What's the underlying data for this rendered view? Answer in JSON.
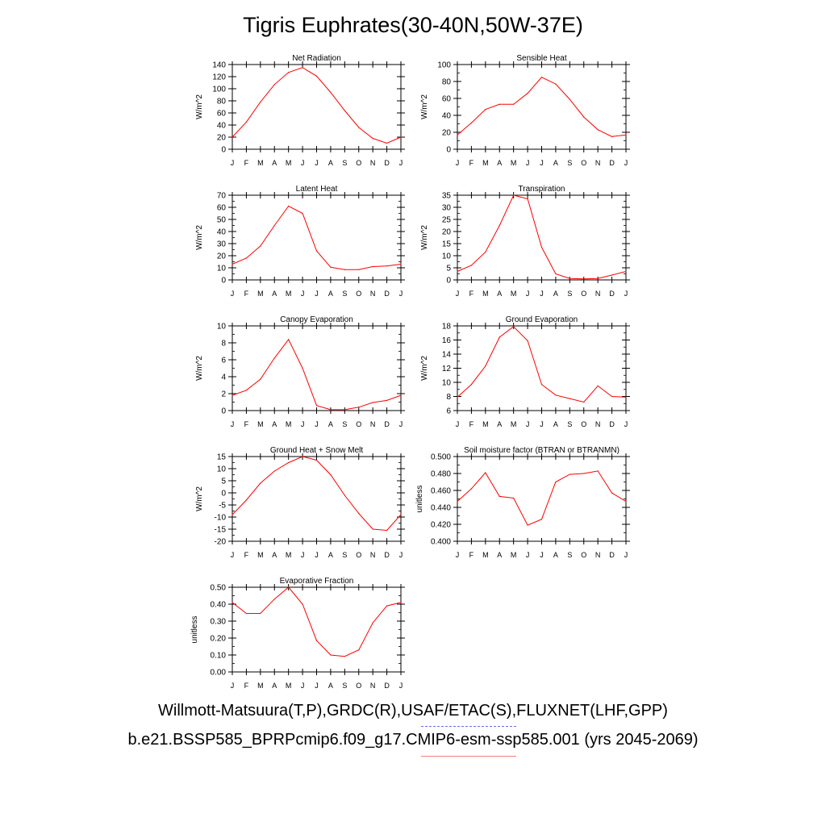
{
  "title": "Tigris Euphrates(30-40N,50W-37E)",
  "footer": {
    "observations": "Willmott-Matsuura(T,P),GRDC(R),USAF/ETAC(S),FLUXNET(LHF,GPP)",
    "run": "b.e21.BSSP585_BPRPcmip6.f09_g17.CMIP6-esm-ssp585.001 (yrs 2045-2069)"
  },
  "colors": {
    "line": "#ff0000",
    "obs_legend": "#6a6af0",
    "run_legend": "#f08080",
    "axis": "#000000"
  },
  "chart_data": [
    {
      "type": "line",
      "title": "Net Radiation",
      "ylabel": "W/m^2",
      "categories": [
        "J",
        "F",
        "M",
        "A",
        "M",
        "J",
        "J",
        "A",
        "S",
        "O",
        "N",
        "D",
        "J"
      ],
      "values": [
        20,
        45,
        78,
        107,
        127,
        135,
        121,
        94,
        64,
        36,
        18,
        10,
        20
      ],
      "ylim": [
        0,
        140
      ],
      "yticks": [
        "0",
        "20",
        "40",
        "60",
        "80",
        "100",
        "120",
        "140"
      ],
      "yminor": 20
    },
    {
      "type": "line",
      "title": "Sensible Heat",
      "ylabel": "W/m^2",
      "categories": [
        "J",
        "F",
        "M",
        "A",
        "M",
        "J",
        "J",
        "A",
        "S",
        "O",
        "N",
        "D",
        "J"
      ],
      "values": [
        17,
        31,
        47,
        53,
        53,
        66,
        85,
        77,
        59,
        38,
        23,
        15,
        17
      ],
      "ylim": [
        0,
        100
      ],
      "yticks": [
        "0",
        "20",
        "40",
        "60",
        "80",
        "100"
      ],
      "yminor": 10
    },
    {
      "type": "line",
      "title": "Latent Heat",
      "ylabel": "W/m^2",
      "categories": [
        "J",
        "F",
        "M",
        "A",
        "M",
        "J",
        "J",
        "A",
        "S",
        "O",
        "N",
        "D",
        "J"
      ],
      "values": [
        13,
        18,
        28,
        45,
        61,
        55,
        24,
        10.5,
        8.5,
        8.5,
        11,
        11.5,
        13
      ],
      "ylim": [
        0,
        70
      ],
      "yticks": [
        "0",
        "10",
        "20",
        "30",
        "40",
        "50",
        "60",
        "70"
      ],
      "yminor": 5
    },
    {
      "type": "line",
      "title": "Transpiration",
      "ylabel": "W/m^2",
      "categories": [
        "J",
        "F",
        "M",
        "A",
        "M",
        "J",
        "J",
        "A",
        "S",
        "O",
        "N",
        "D",
        "J"
      ],
      "values": [
        3.5,
        6,
        11.5,
        22.5,
        35,
        33.5,
        13.5,
        2.5,
        0.6,
        0.4,
        0.6,
        2,
        3.5
      ],
      "ylim": [
        0,
        35
      ],
      "yticks": [
        "0",
        "5",
        "10",
        "15",
        "20",
        "25",
        "30",
        "35"
      ],
      "yminor": 2.5
    },
    {
      "type": "line",
      "title": "Canopy Evaporation",
      "ylabel": "W/m^2",
      "categories": [
        "J",
        "F",
        "M",
        "A",
        "M",
        "J",
        "J",
        "A",
        "S",
        "O",
        "N",
        "D",
        "J"
      ],
      "values": [
        1.8,
        2.4,
        3.7,
        6.2,
        8.4,
        5.0,
        0.6,
        0.1,
        0.1,
        0.4,
        0.95,
        1.2,
        1.8
      ],
      "ylim": [
        0,
        10
      ],
      "yticks": [
        "0",
        "2",
        "4",
        "6",
        "8",
        "10"
      ],
      "yminor": 1
    },
    {
      "type": "line",
      "title": "Ground Evaporation",
      "ylabel": "W/m^2",
      "categories": [
        "J",
        "F",
        "M",
        "A",
        "M",
        "J",
        "J",
        "A",
        "S",
        "O",
        "N",
        "D",
        "J"
      ],
      "values": [
        7.9,
        9.7,
        12.3,
        16.4,
        17.9,
        15.9,
        9.7,
        8.2,
        7.7,
        7.2,
        9.5,
        8.0,
        7.9
      ],
      "ylim": [
        6,
        18
      ],
      "yticks": [
        "6",
        "8",
        "10",
        "12",
        "14",
        "16",
        "18"
      ],
      "yminor": 1
    },
    {
      "type": "line",
      "title": "Ground Heat + Snow Melt",
      "ylabel": "W/m^2",
      "categories": [
        "J",
        "F",
        "M",
        "A",
        "M",
        "J",
        "J",
        "A",
        "S",
        "O",
        "N",
        "D",
        "J"
      ],
      "values": [
        -9,
        -3,
        4,
        9,
        12.5,
        15,
        13.5,
        7.5,
        -1,
        -8.5,
        -15,
        -15.5,
        -9
      ],
      "ylim": [
        -20,
        15
      ],
      "yticks": [
        "-20",
        "-15",
        "-10",
        "-5",
        "0",
        "5",
        "10",
        "15"
      ],
      "yminor": 2.5
    },
    {
      "type": "line",
      "title": "Soil moisture factor (BTRAN or BTRANMN)",
      "ylabel": "unitless",
      "categories": [
        "J",
        "F",
        "M",
        "A",
        "M",
        "J",
        "J",
        "A",
        "S",
        "O",
        "N",
        "D",
        "J"
      ],
      "values": [
        0.447,
        0.462,
        0.481,
        0.453,
        0.451,
        0.419,
        0.426,
        0.47,
        0.479,
        0.48,
        0.483,
        0.457,
        0.447
      ],
      "ylim": [
        0.4,
        0.5
      ],
      "yticks": [
        "0.400",
        "0.420",
        "0.440",
        "0.460",
        "0.480",
        "0.500"
      ],
      "yminor": 0.01
    },
    {
      "type": "line",
      "title": "Evaporative Fraction",
      "ylabel": "unitless",
      "categories": [
        "J",
        "F",
        "M",
        "A",
        "M",
        "J",
        "J",
        "A",
        "S",
        "O",
        "N",
        "D",
        "J"
      ],
      "values": [
        0.41,
        0.345,
        0.345,
        0.43,
        0.5,
        0.4,
        0.185,
        0.1,
        0.092,
        0.13,
        0.29,
        0.39,
        0.41
      ],
      "ylim": [
        0,
        0.5
      ],
      "yticks": [
        "0.00",
        "0.10",
        "0.20",
        "0.30",
        "0.40",
        "0.50"
      ],
      "yminor": 0.05
    }
  ]
}
